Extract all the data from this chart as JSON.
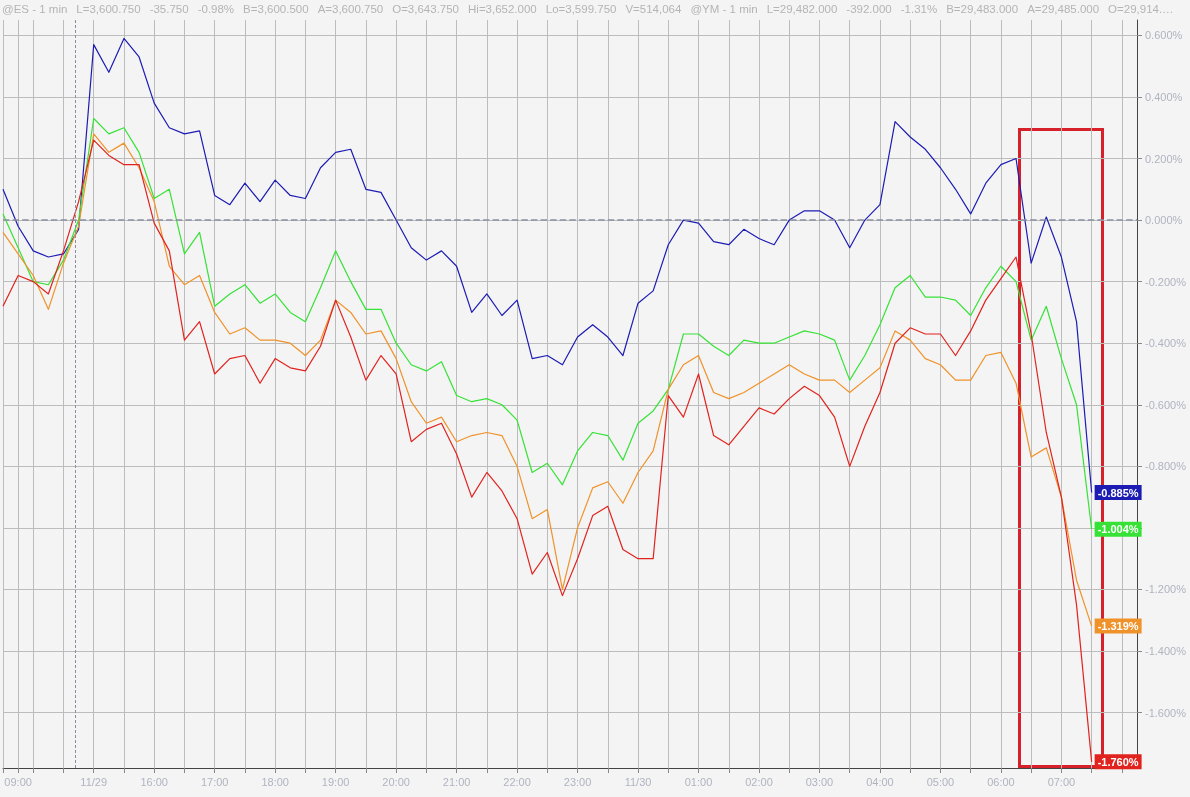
{
  "chart_data": {
    "type": "line",
    "annotations": [
      "@ES - 1 min",
      "L=3,600.750",
      "-35.750",
      "-0.98%",
      "B=3,600.500",
      "A=3,600.750",
      "O=3,643.750",
      "Hi=3,652.000",
      "Lo=3,599.750",
      "V=514,064",
      "@YM - 1 min",
      "L=29,482.000",
      "-392.000",
      "-1.31%",
      "B=29,483.000",
      "A=29,485.000",
      "O=29,914.…"
    ],
    "categories": [
      null,
      "09:00",
      null,
      null,
      null,
      null,
      "11/29",
      null,
      null,
      null,
      "16:00",
      null,
      null,
      null,
      "17:00",
      null,
      null,
      null,
      "18:00",
      null,
      null,
      null,
      "19:00",
      null,
      null,
      null,
      "20:00",
      null,
      null,
      null,
      "21:00",
      null,
      null,
      null,
      "22:00",
      null,
      null,
      null,
      "23:00",
      null,
      null,
      null,
      "11/30",
      null,
      null,
      null,
      "01:00",
      null,
      null,
      null,
      "02:00",
      null,
      null,
      null,
      "03:00",
      null,
      null,
      null,
      "04:00",
      null,
      null,
      null,
      "05:00",
      null,
      null,
      null,
      "06:00",
      null,
      null,
      null,
      "07:00",
      null,
      null,
      null,
      null,
      null
    ],
    "ylim": [
      -1.78,
      0.65
    ],
    "yticks": [
      {
        "value": -1.6,
        "label": "-1.600%"
      },
      {
        "value": -1.4,
        "label": "-1.400%"
      },
      {
        "value": -1.2,
        "label": "-1.200%"
      },
      {
        "value": -1.0,
        "label": null
      },
      {
        "value": -0.8,
        "label": "-0.800%"
      },
      {
        "value": -0.6,
        "label": "-0.600%"
      },
      {
        "value": -0.4,
        "label": "-0.400%"
      },
      {
        "value": -0.2,
        "label": "-0.200%"
      },
      {
        "value": 0,
        "label": "0.000%"
      },
      {
        "value": 0.2,
        "label": "0.200%"
      },
      {
        "value": 0.4,
        "label": "0.400%"
      },
      {
        "value": 0.6,
        "label": "0.600%"
      }
    ],
    "grid": true,
    "ref_lines": [
      {
        "axis": "y",
        "value": 0,
        "color": "#8a8fa0",
        "line_style": "dashed"
      }
    ],
    "series": [
      {
        "color": "#1c1cb4",
        "values": [
          0.1,
          -0.02,
          -0.1,
          -0.12,
          -0.11,
          -0.03,
          0.57,
          0.48,
          0.59,
          0.53,
          0.38,
          0.3,
          0.28,
          0.29,
          0.08,
          0.05,
          0.12,
          0.06,
          0.13,
          0.08,
          0.07,
          0.17,
          0.22,
          0.23,
          0.1,
          0.09,
          0.0,
          -0.09,
          -0.13,
          -0.1,
          -0.15,
          -0.3,
          -0.24,
          -0.31,
          -0.26,
          -0.45,
          -0.44,
          -0.47,
          -0.38,
          -0.34,
          -0.38,
          -0.44,
          -0.27,
          -0.23,
          -0.08,
          0.0,
          -0.01,
          -0.07,
          -0.08,
          -0.03,
          -0.06,
          -0.08,
          0.0,
          0.03,
          0.03,
          0.0,
          -0.09,
          0.0,
          0.05,
          0.32,
          0.27,
          0.23,
          0.17,
          0.1,
          0.02,
          0.12,
          0.18,
          0.2,
          -0.14,
          0.01,
          -0.12,
          -0.33,
          -0.885,
          null,
          null,
          null
        ],
        "value_labels": [
          null,
          null,
          null,
          null,
          null,
          null,
          null,
          null,
          null,
          null,
          null,
          null,
          null,
          null,
          null,
          null,
          null,
          null,
          null,
          null,
          null,
          null,
          null,
          null,
          null,
          null,
          null,
          null,
          null,
          null,
          null,
          null,
          null,
          null,
          null,
          null,
          null,
          null,
          null,
          null,
          null,
          null,
          null,
          null,
          null,
          null,
          null,
          null,
          null,
          null,
          null,
          null,
          null,
          null,
          null,
          null,
          null,
          null,
          null,
          null,
          null,
          null,
          null,
          null,
          null,
          null,
          null,
          null,
          null,
          null,
          null,
          null,
          "-0.885%",
          null,
          null,
          null
        ]
      },
      {
        "color": "#36e236",
        "values": [
          0.02,
          -0.09,
          -0.2,
          -0.21,
          -0.13,
          0.0,
          0.33,
          0.28,
          0.3,
          0.22,
          0.07,
          0.1,
          -0.11,
          -0.04,
          -0.28,
          -0.24,
          -0.21,
          -0.27,
          -0.24,
          -0.3,
          -0.33,
          -0.22,
          -0.1,
          -0.2,
          -0.29,
          -0.29,
          -0.4,
          -0.47,
          -0.49,
          -0.46,
          -0.57,
          -0.59,
          -0.58,
          -0.6,
          -0.65,
          -0.82,
          -0.79,
          -0.86,
          -0.75,
          -0.69,
          -0.7,
          -0.78,
          -0.66,
          -0.62,
          -0.55,
          -0.37,
          -0.37,
          -0.41,
          -0.44,
          -0.39,
          -0.4,
          -0.4,
          -0.38,
          -0.36,
          -0.37,
          -0.39,
          -0.52,
          -0.44,
          -0.34,
          -0.22,
          -0.18,
          -0.25,
          -0.25,
          -0.26,
          -0.31,
          -0.22,
          -0.15,
          -0.2,
          -0.39,
          -0.28,
          -0.45,
          -0.6,
          -1.004,
          null,
          null,
          null
        ],
        "value_labels": [
          null,
          null,
          null,
          null,
          null,
          null,
          null,
          null,
          null,
          null,
          null,
          null,
          null,
          null,
          null,
          null,
          null,
          null,
          null,
          null,
          null,
          null,
          null,
          null,
          null,
          null,
          null,
          null,
          null,
          null,
          null,
          null,
          null,
          null,
          null,
          null,
          null,
          null,
          null,
          null,
          null,
          null,
          null,
          null,
          null,
          null,
          null,
          null,
          null,
          null,
          null,
          null,
          null,
          null,
          null,
          null,
          null,
          null,
          null,
          null,
          null,
          null,
          null,
          null,
          null,
          null,
          null,
          null,
          null,
          null,
          null,
          null,
          "-1.004%",
          null,
          null,
          null
        ]
      },
      {
        "color": "#f0922a",
        "values": [
          -0.04,
          -0.11,
          -0.18,
          -0.29,
          -0.14,
          -0.02,
          0.28,
          0.22,
          0.25,
          0.17,
          0.06,
          -0.15,
          -0.21,
          -0.18,
          -0.3,
          -0.37,
          -0.35,
          -0.39,
          -0.39,
          -0.4,
          -0.44,
          -0.39,
          -0.26,
          -0.3,
          -0.37,
          -0.36,
          -0.45,
          -0.59,
          -0.66,
          -0.64,
          -0.72,
          -0.7,
          -0.69,
          -0.7,
          -0.8,
          -0.97,
          -0.94,
          -1.2,
          -1.0,
          -0.87,
          -0.85,
          -0.92,
          -0.82,
          -0.75,
          -0.55,
          -0.47,
          -0.44,
          -0.56,
          -0.58,
          -0.56,
          -0.53,
          -0.5,
          -0.47,
          -0.5,
          -0.52,
          -0.52,
          -0.56,
          -0.52,
          -0.48,
          -0.36,
          -0.39,
          -0.45,
          -0.47,
          -0.52,
          -0.52,
          -0.44,
          -0.43,
          -0.53,
          -0.77,
          -0.74,
          -0.9,
          -1.17,
          -1.319,
          null,
          null,
          null
        ],
        "value_labels": [
          null,
          null,
          null,
          null,
          null,
          null,
          null,
          null,
          null,
          null,
          null,
          null,
          null,
          null,
          null,
          null,
          null,
          null,
          null,
          null,
          null,
          null,
          null,
          null,
          null,
          null,
          null,
          null,
          null,
          null,
          null,
          null,
          null,
          null,
          null,
          null,
          null,
          null,
          null,
          null,
          null,
          null,
          null,
          null,
          null,
          null,
          null,
          null,
          null,
          null,
          null,
          null,
          null,
          null,
          null,
          null,
          null,
          null,
          null,
          null,
          null,
          null,
          null,
          null,
          null,
          null,
          null,
          null,
          null,
          null,
          null,
          null,
          "-1.319%",
          null,
          null,
          null
        ]
      },
      {
        "color": "#e0231e",
        "values": [
          -0.28,
          -0.18,
          -0.2,
          -0.24,
          -0.1,
          0.06,
          0.26,
          0.21,
          0.18,
          0.18,
          -0.01,
          -0.1,
          -0.39,
          -0.33,
          -0.5,
          -0.45,
          -0.44,
          -0.53,
          -0.45,
          -0.48,
          -0.49,
          -0.41,
          -0.26,
          -0.38,
          -0.52,
          -0.44,
          -0.5,
          -0.72,
          -0.68,
          -0.66,
          -0.76,
          -0.9,
          -0.82,
          -0.88,
          -0.97,
          -1.15,
          -1.08,
          -1.22,
          -1.1,
          -0.96,
          -0.93,
          -1.07,
          -1.1,
          -1.1,
          -0.57,
          -0.64,
          -0.5,
          -0.7,
          -0.73,
          -0.67,
          -0.61,
          -0.63,
          -0.58,
          -0.54,
          -0.57,
          -0.64,
          -0.8,
          -0.67,
          -0.56,
          -0.4,
          -0.35,
          -0.37,
          -0.37,
          -0.44,
          -0.36,
          -0.26,
          -0.19,
          -0.12,
          -0.37,
          -0.69,
          -0.9,
          -1.25,
          -1.76,
          null,
          null,
          null
        ],
        "value_labels": [
          null,
          null,
          null,
          null,
          null,
          null,
          null,
          null,
          null,
          null,
          null,
          null,
          null,
          null,
          null,
          null,
          null,
          null,
          null,
          null,
          null,
          null,
          null,
          null,
          null,
          null,
          null,
          null,
          null,
          null,
          null,
          null,
          null,
          null,
          null,
          null,
          null,
          null,
          null,
          null,
          null,
          null,
          null,
          null,
          null,
          null,
          null,
          null,
          null,
          null,
          null,
          null,
          null,
          null,
          null,
          null,
          null,
          null,
          null,
          null,
          null,
          null,
          null,
          null,
          null,
          null,
          null,
          null,
          null,
          null,
          null,
          null,
          "-1.760%",
          null,
          null,
          null
        ]
      }
    ]
  }
}
